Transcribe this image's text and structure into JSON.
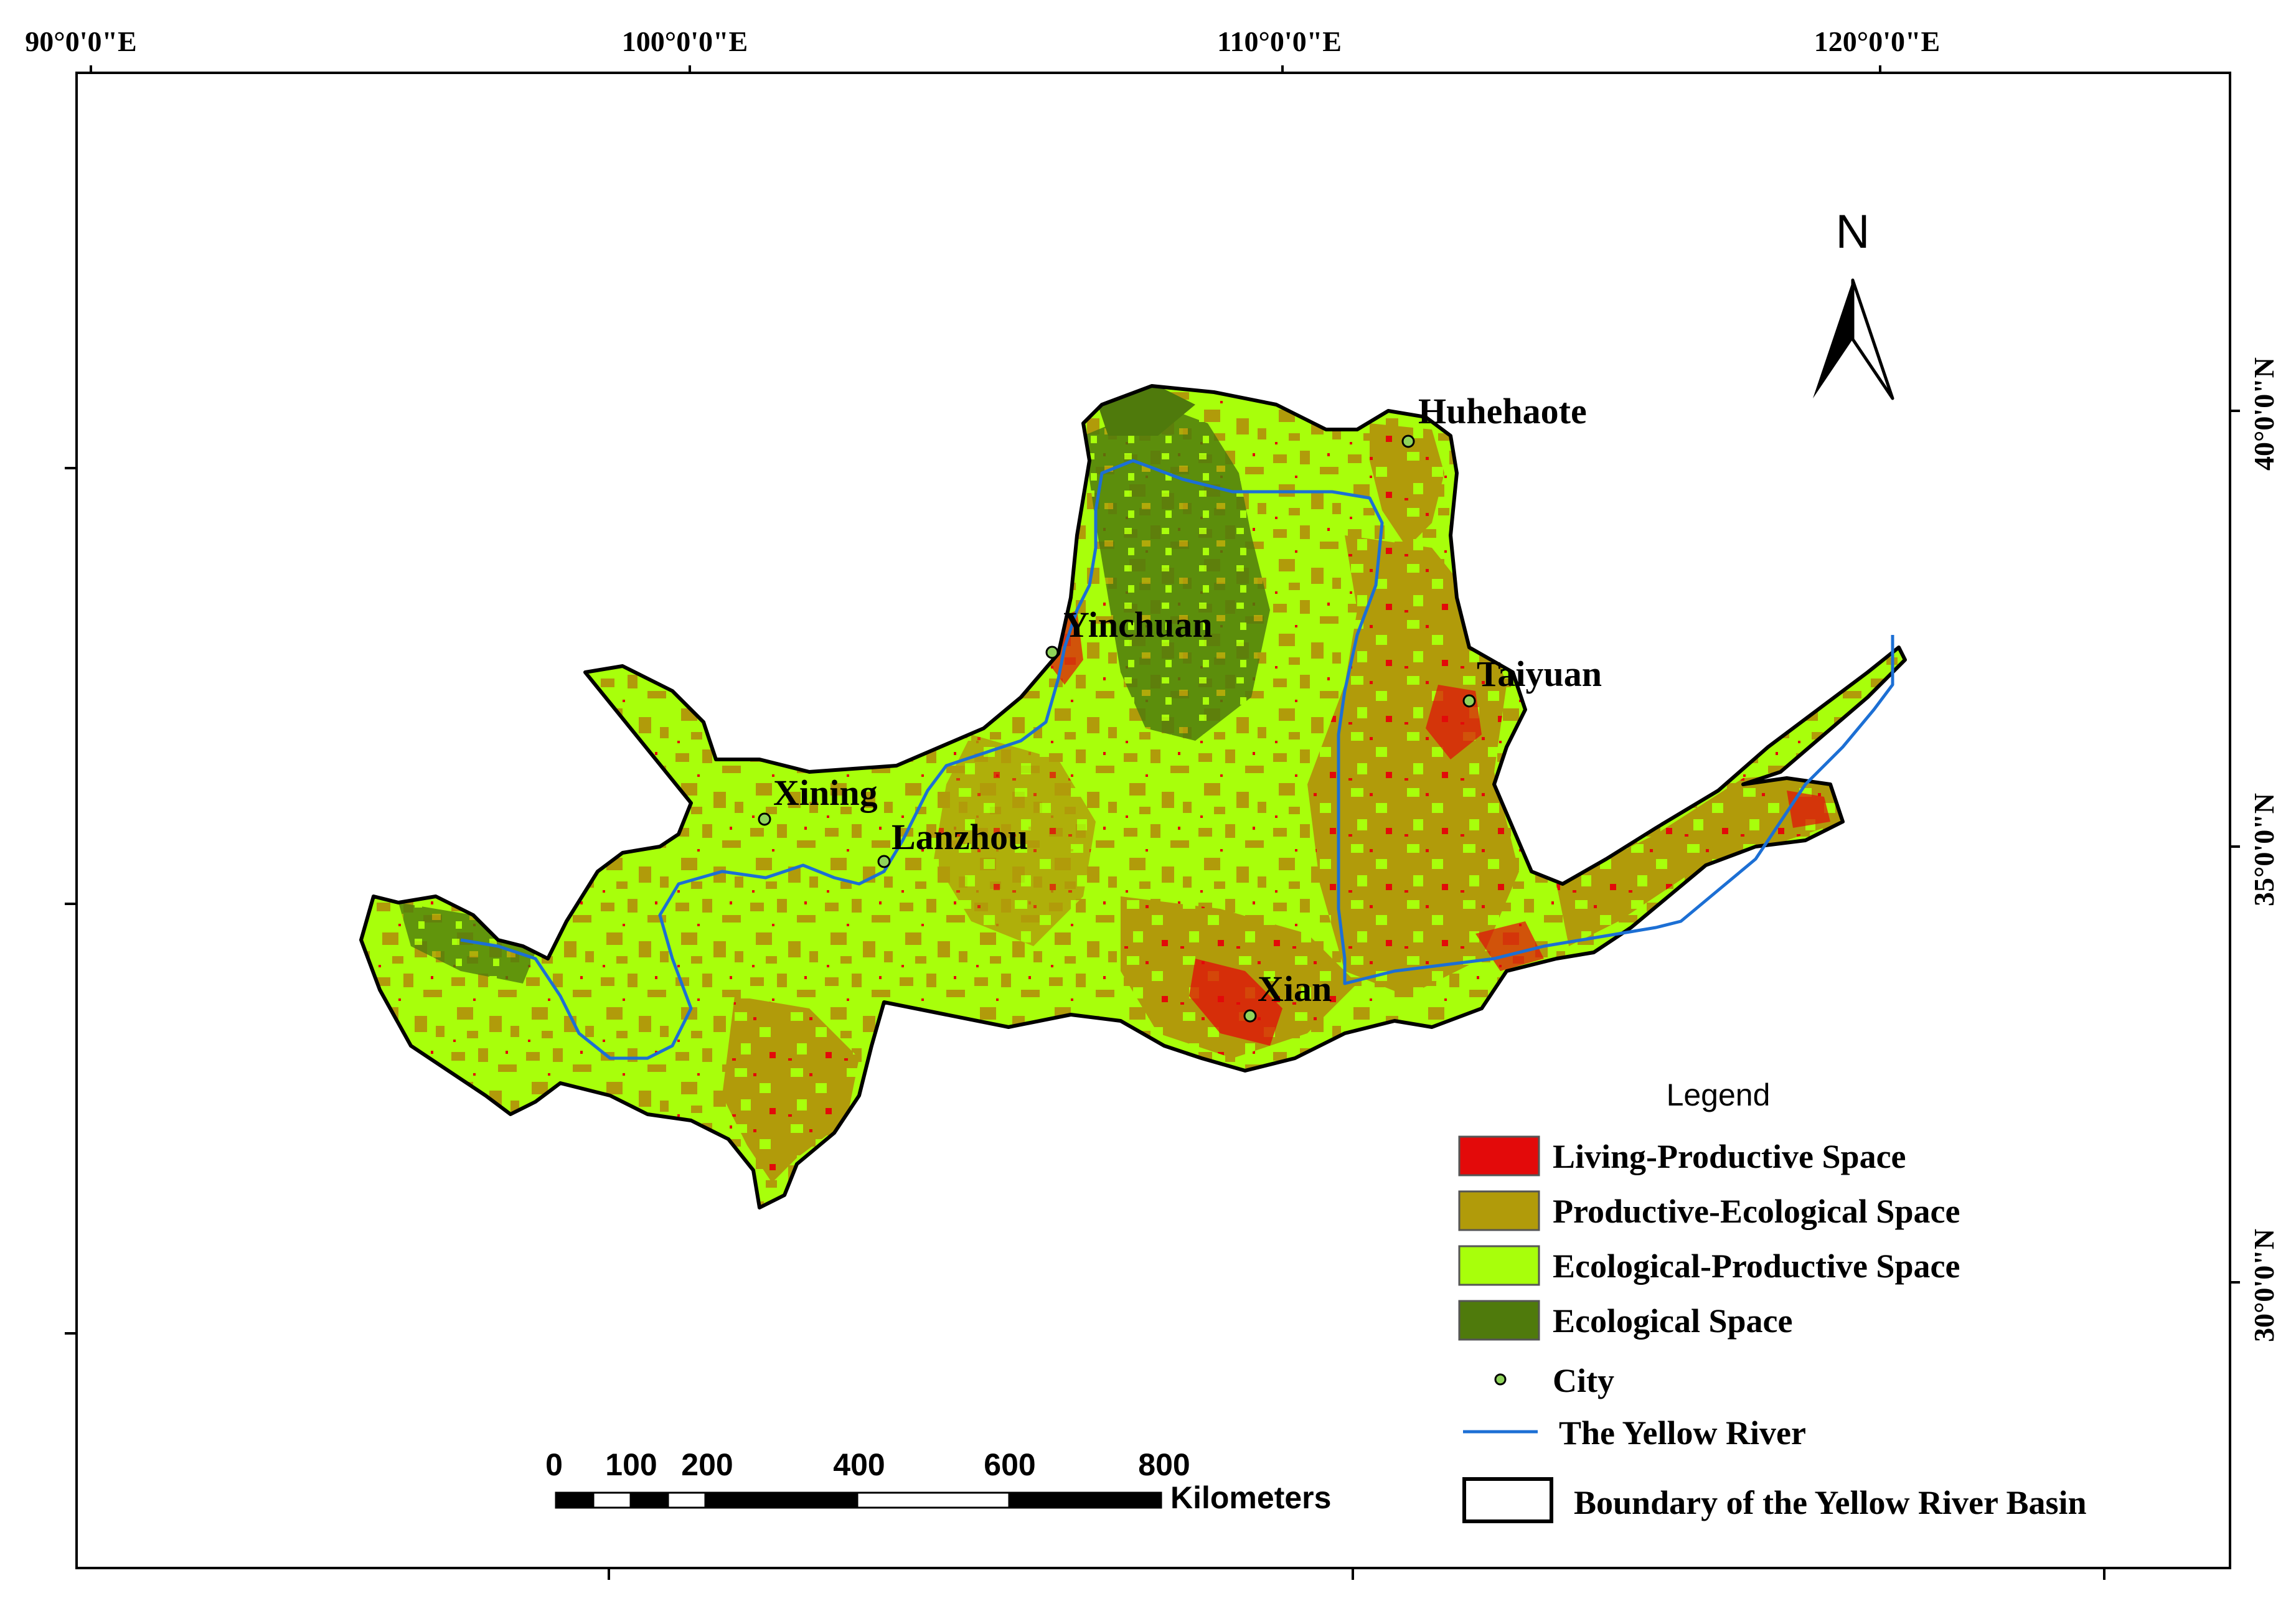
{
  "graticule": {
    "top_labels": [
      "90°0'0\"E",
      "100°0'0\"E",
      "110°0'0\"E",
      "120°0'0\"E"
    ],
    "right_labels": [
      "40°0'0\"N",
      "35°0'0\"N",
      "30°0'0\"N"
    ]
  },
  "north_arrow": {
    "label": "N"
  },
  "cities": [
    {
      "name": "Huhehaote"
    },
    {
      "name": "Yinchuan"
    },
    {
      "name": "Taiyuan"
    },
    {
      "name": "Xining"
    },
    {
      "name": "Lanzhou"
    },
    {
      "name": "Xian"
    }
  ],
  "legend": {
    "title": "Legend",
    "items": [
      {
        "label": "Living-Productive Space",
        "color": "#e30a0a"
      },
      {
        "label": "Productive-Ecological Space",
        "color": "#b19b0a"
      },
      {
        "label": "Ecological-Productive Space",
        "color": "#a8ff0b"
      },
      {
        "label": "Ecological Space",
        "color": "#4f7a0c"
      }
    ],
    "city_label": "City",
    "river_label": "The Yellow River",
    "boundary_label": "Boundary of the Yellow River Basin",
    "river_color": "#1c6fd4"
  },
  "scale_bar": {
    "ticks": [
      "0",
      "100",
      "200",
      "400",
      "600",
      "800"
    ],
    "unit": "Kilometers"
  }
}
